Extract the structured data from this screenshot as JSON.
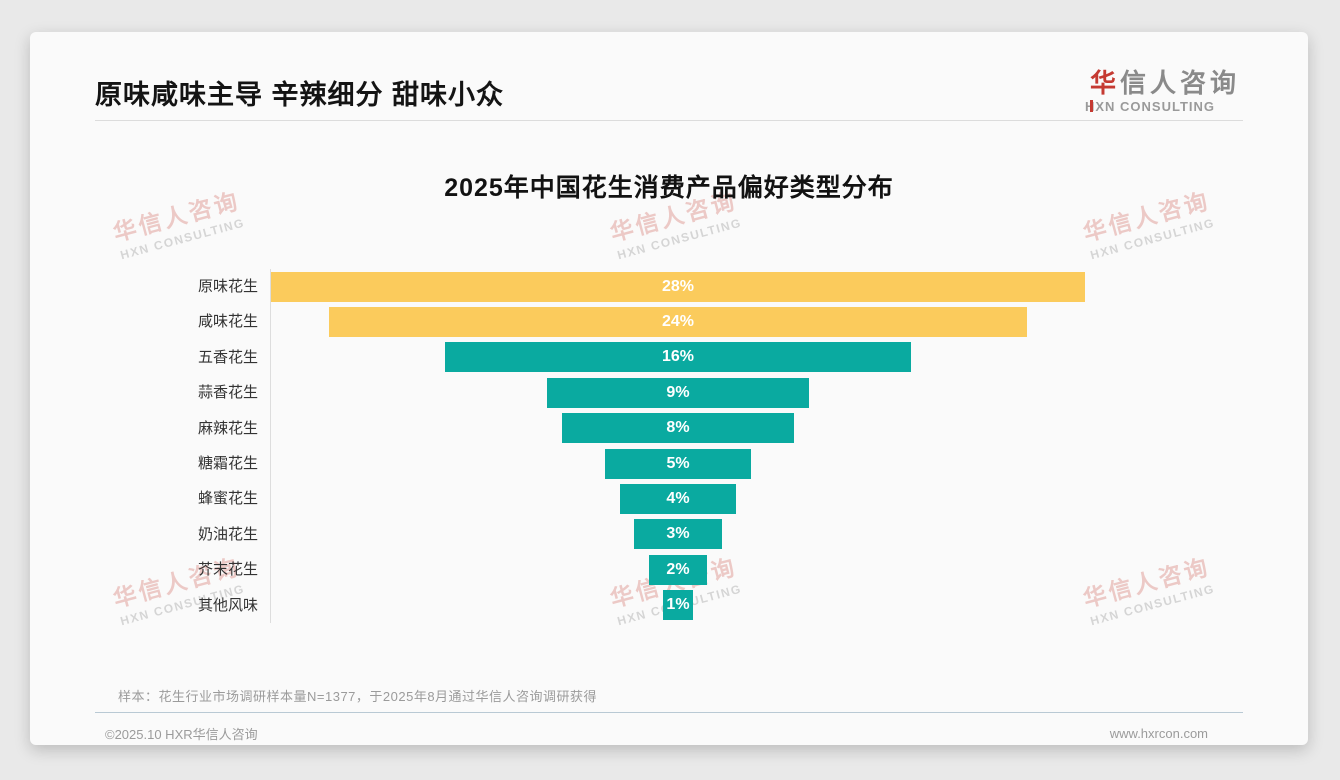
{
  "header": {
    "title": "原味咸味主导 辛辣细分 甜味小众",
    "logo": {
      "cn_accent": "华",
      "cn_rest": "信人咨询",
      "en": "XN CONSULTING",
      "en_first_letter": "H",
      "accent_color": "#c53a32"
    }
  },
  "watermark": {
    "cn": "华信人咨询",
    "en": "HXN CONSULTING"
  },
  "chart_data": {
    "type": "bar",
    "orientation": "horizontal-centered-funnel",
    "title": "2025年中国花生消费产品偏好类型分布",
    "categories": [
      "原味花生",
      "咸味花生",
      "五香花生",
      "蒜香花生",
      "麻辣花生",
      "糖霜花生",
      "蜂蜜花生",
      "奶油花生",
      "芥末花生",
      "其他风味"
    ],
    "values": [
      28,
      24,
      16,
      9,
      8,
      5,
      4,
      3,
      2,
      1
    ],
    "value_labels": [
      "28%",
      "24%",
      "16%",
      "9%",
      "8%",
      "5%",
      "4%",
      "3%",
      "2%",
      "1%"
    ],
    "value_suffix": "%",
    "bar_colors": [
      "#fbcb5c",
      "#fbcb5c",
      "#0aaaa0",
      "#0aaaa0",
      "#0aaaa0",
      "#0aaaa0",
      "#0aaaa0",
      "#0aaaa0",
      "#0aaaa0",
      "#0aaaa0"
    ],
    "colors": {
      "yellow": "#fbcb5c",
      "teal": "#0aaaa0",
      "value_text": "#ffffff"
    },
    "legend": "none",
    "grid": "off",
    "xlim": [
      0,
      28
    ]
  },
  "footer": {
    "note": "样本：花生行业市场调研样本量N=1377，于2025年8月通过华信人咨询调研获得",
    "left": "©2025.10 HXR华信人咨询",
    "right": "www.hxrcon.com"
  }
}
